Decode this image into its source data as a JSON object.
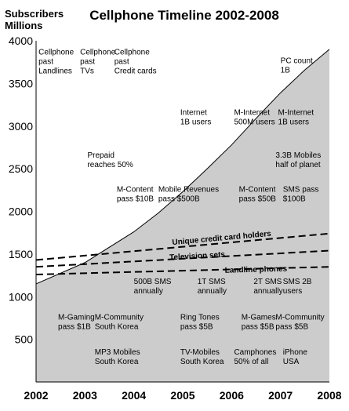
{
  "chart_data": {
    "type": "area",
    "title": "Cellphone Timeline 2002-2008",
    "ylabel": "Subscribers\nMillions",
    "xlabel": "",
    "xlim": [
      2002,
      2008
    ],
    "ylim": [
      0,
      4000
    ],
    "x_ticks": [
      "2002",
      "2003",
      "2004",
      "2005",
      "2006",
      "2007",
      "2008"
    ],
    "y_ticks": [
      "500",
      "1000",
      "1500",
      "2000",
      "2500",
      "3000",
      "3500",
      "4000"
    ],
    "grid": false,
    "series": [
      {
        "type": "area",
        "color": "#cccccc",
        "x": [
          2002,
          2003,
          2004,
          2004.5,
          2005,
          2005.5,
          2006,
          2006.5,
          2007,
          2007.5,
          2008
        ],
        "y": [
          1150,
          1400,
          1760,
          1980,
          2230,
          2500,
          2780,
          3090,
          3390,
          3660,
          3900
        ]
      }
    ],
    "reference_lines": [
      {
        "label": "Unique credit card holders",
        "x": [
          2002,
          2008
        ],
        "y": [
          1430,
          1740
        ],
        "label_x": 2005.8,
        "label_y": 1660
      },
      {
        "label": "Television sets",
        "x": [
          2002,
          2008
        ],
        "y": [
          1350,
          1540
        ],
        "label_x": 2005.3,
        "label_y": 1450
      },
      {
        "label": "Landline phones",
        "x": [
          2002,
          2008
        ],
        "y": [
          1260,
          1350
        ],
        "label_x": 2006.5,
        "label_y": 1290
      }
    ],
    "annotations": [
      {
        "lines": [
          "Cellphone",
          "past",
          "Landlines"
        ],
        "x": 2002.05,
        "y": 3840
      },
      {
        "lines": [
          "Cellphone",
          "past",
          "TVs"
        ],
        "x": 2002.9,
        "y": 3840
      },
      {
        "lines": [
          "Cellphone",
          "past",
          "Credit cards"
        ],
        "x": 2003.6,
        "y": 3840
      },
      {
        "lines": [
          "PC count",
          "1B"
        ],
        "x": 2007.0,
        "y": 3740
      },
      {
        "lines": [
          "Internet",
          "1B users"
        ],
        "x": 2004.95,
        "y": 3130
      },
      {
        "lines": [
          "M-Internet",
          "500M users"
        ],
        "x": 2006.05,
        "y": 3130
      },
      {
        "lines": [
          "M-Internet",
          "1B users"
        ],
        "x": 2006.95,
        "y": 3130
      },
      {
        "lines": [
          "Prepaid",
          "reaches 50%"
        ],
        "x": 2003.05,
        "y": 2630
      },
      {
        "lines": [
          "3.3B Mobiles",
          "half of planet"
        ],
        "x": 2006.9,
        "y": 2630
      },
      {
        "lines": [
          "M-Content",
          "pass $10B"
        ],
        "x": 2003.65,
        "y": 2230
      },
      {
        "lines": [
          "Mobile Revenues",
          "pass $500B"
        ],
        "x": 2004.5,
        "y": 2230
      },
      {
        "lines": [
          "M-Content",
          "pass $50B"
        ],
        "x": 2006.15,
        "y": 2230
      },
      {
        "lines": [
          "SMS pass",
          "$100B"
        ],
        "x": 2007.05,
        "y": 2230
      },
      {
        "lines": [
          "500B SMS",
          "annually"
        ],
        "x": 2004.0,
        "y": 1150
      },
      {
        "lines": [
          "1T SMS",
          "annually"
        ],
        "x": 2005.3,
        "y": 1150
      },
      {
        "lines": [
          "2T SMS",
          "annually"
        ],
        "x": 2006.45,
        "y": 1150
      },
      {
        "lines": [
          "SMS 2B",
          "users"
        ],
        "x": 2007.05,
        "y": 1150
      },
      {
        "lines": [
          "M-Gaming",
          "pass $1B"
        ],
        "x": 2002.45,
        "y": 730
      },
      {
        "lines": [
          "M-Community",
          "South Korea"
        ],
        "x": 2003.2,
        "y": 730
      },
      {
        "lines": [
          "Ring Tones",
          "pass $5B"
        ],
        "x": 2004.95,
        "y": 730
      },
      {
        "lines": [
          "M-Games",
          "pass $5B"
        ],
        "x": 2006.2,
        "y": 730
      },
      {
        "lines": [
          "M-Community",
          "pass $5B"
        ],
        "x": 2006.9,
        "y": 730
      },
      {
        "lines": [
          "MP3 Mobiles",
          "South Korea"
        ],
        "x": 2003.2,
        "y": 320
      },
      {
        "lines": [
          "TV-Mobiles",
          "South Korea"
        ],
        "x": 2004.95,
        "y": 320
      },
      {
        "lines": [
          "Camphones",
          "50% of all"
        ],
        "x": 2006.05,
        "y": 320
      },
      {
        "lines": [
          "iPhone",
          "USA"
        ],
        "x": 2007.05,
        "y": 320
      }
    ]
  }
}
